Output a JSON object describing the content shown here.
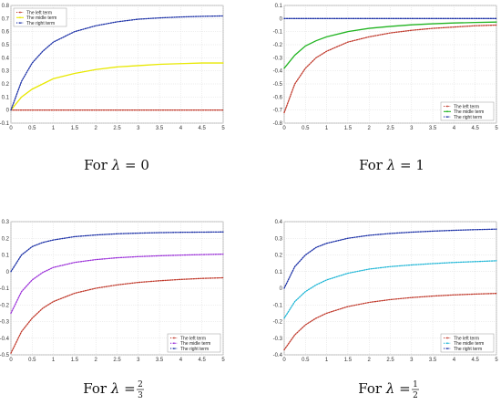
{
  "chart_data": [
    {
      "type": "line",
      "caption": {
        "prefix": "For",
        "lambda_sym": "λ",
        "eq": "=",
        "value": "0"
      },
      "xlim": [
        0,
        5
      ],
      "ylim": [
        -0.1,
        0.8
      ],
      "xticks": [
        "0",
        "0.5",
        "1",
        "1.5",
        "2",
        "2.5",
        "3",
        "3.5",
        "4",
        "4.5",
        "5"
      ],
      "yticks": [
        "-0.1",
        "0",
        "0.1",
        "0.2",
        "0.3",
        "0.4",
        "0.5",
        "0.6",
        "0.7",
        "0.8"
      ],
      "grid": true,
      "legend_position": "top-left",
      "series": [
        {
          "name": "The left term",
          "color": "#c0392b",
          "dash": "1.2,1.4",
          "points": [
            [
              0,
              0
            ],
            [
              0.5,
              0
            ],
            [
              1,
              0
            ],
            [
              1.5,
              0
            ],
            [
              2,
              0
            ],
            [
              2.5,
              0
            ],
            [
              3,
              0
            ],
            [
              3.5,
              0
            ],
            [
              4,
              0
            ],
            [
              4.5,
              0
            ],
            [
              5,
              0
            ]
          ]
        },
        {
          "name": "The midle term",
          "color": "#e8e800",
          "dash": "",
          "points": [
            [
              0,
              0
            ],
            [
              0.25,
              0.1
            ],
            [
              0.5,
              0.16
            ],
            [
              0.75,
              0.2
            ],
            [
              1,
              0.24
            ],
            [
              1.5,
              0.28
            ],
            [
              2,
              0.31
            ],
            [
              2.5,
              0.33
            ],
            [
              3,
              0.34
            ],
            [
              3.5,
              0.35
            ],
            [
              4,
              0.355
            ],
            [
              4.5,
              0.36
            ],
            [
              5,
              0.36
            ]
          ]
        },
        {
          "name": "The right term",
          "color": "#1a2fa6",
          "dash": "1.2,1.4",
          "points": [
            [
              0,
              0
            ],
            [
              0.25,
              0.22
            ],
            [
              0.5,
              0.36
            ],
            [
              0.75,
              0.45
            ],
            [
              1,
              0.52
            ],
            [
              1.5,
              0.6
            ],
            [
              2,
              0.645
            ],
            [
              2.5,
              0.675
            ],
            [
              3,
              0.695
            ],
            [
              3.5,
              0.705
            ],
            [
              4,
              0.712
            ],
            [
              4.5,
              0.717
            ],
            [
              5,
              0.72
            ]
          ]
        }
      ]
    },
    {
      "type": "line",
      "caption": {
        "prefix": "For",
        "lambda_sym": "λ",
        "eq": "=",
        "value": "1"
      },
      "xlim": [
        0,
        5
      ],
      "ylim": [
        -0.8,
        0.1
      ],
      "xticks": [
        "0",
        "0.5",
        "1",
        "1.5",
        "2",
        "2.5",
        "3",
        "3.5",
        "4",
        "4.5",
        "5"
      ],
      "yticks": [
        "-0.8",
        "-0.7",
        "-0.6",
        "-0.5",
        "-0.4",
        "-0.3",
        "-0.2",
        "-0.1",
        "0",
        "0.1"
      ],
      "grid": true,
      "legend_position": "bottom-right",
      "series": [
        {
          "name": "The left term",
          "color": "#c0392b",
          "dash": "1.2,1.4",
          "points": [
            [
              0,
              -0.72
            ],
            [
              0.25,
              -0.5
            ],
            [
              0.5,
              -0.38
            ],
            [
              0.75,
              -0.3
            ],
            [
              1,
              -0.25
            ],
            [
              1.5,
              -0.18
            ],
            [
              2,
              -0.14
            ],
            [
              2.5,
              -0.11
            ],
            [
              3,
              -0.09
            ],
            [
              3.5,
              -0.075
            ],
            [
              4,
              -0.065
            ],
            [
              4.5,
              -0.055
            ],
            [
              5,
              -0.05
            ]
          ]
        },
        {
          "name": "The midle term",
          "color": "#22b422",
          "dash": "",
          "points": [
            [
              0,
              -0.38
            ],
            [
              0.25,
              -0.28
            ],
            [
              0.5,
              -0.21
            ],
            [
              0.75,
              -0.17
            ],
            [
              1,
              -0.14
            ],
            [
              1.5,
              -0.1
            ],
            [
              2,
              -0.075
            ],
            [
              2.5,
              -0.06
            ],
            [
              3,
              -0.048
            ],
            [
              3.5,
              -0.04
            ],
            [
              4,
              -0.034
            ],
            [
              4.5,
              -0.03
            ],
            [
              5,
              -0.027
            ]
          ]
        },
        {
          "name": "The right term",
          "color": "#1a2fa6",
          "dash": "1.2,1.4",
          "points": [
            [
              0,
              0
            ],
            [
              0.5,
              0
            ],
            [
              1,
              0
            ],
            [
              1.5,
              0
            ],
            [
              2,
              0
            ],
            [
              2.5,
              0
            ],
            [
              3,
              0
            ],
            [
              3.5,
              0
            ],
            [
              4,
              0
            ],
            [
              4.5,
              0
            ],
            [
              5,
              0
            ]
          ]
        }
      ]
    },
    {
      "type": "line",
      "caption": {
        "prefix": "For",
        "lambda_sym": "λ",
        "eq": "=",
        "num": "2",
        "den": "3"
      },
      "xlim": [
        0,
        5
      ],
      "ylim": [
        -0.5,
        0.3
      ],
      "xticks": [
        "0",
        "0.5",
        "1",
        "1.5",
        "2",
        "2.5",
        "3",
        "3.5",
        "4",
        "4.5",
        "5"
      ],
      "yticks": [
        "-0.5",
        "-0.4",
        "-0.3",
        "-0.2",
        "-0.1",
        "0",
        "0.1",
        "0.2",
        "0.3"
      ],
      "grid": true,
      "legend_position": "bottom-right",
      "series": [
        {
          "name": "The left term",
          "color": "#c0392b",
          "dash": "1.2,1.4",
          "points": [
            [
              0,
              -0.49
            ],
            [
              0.25,
              -0.36
            ],
            [
              0.5,
              -0.28
            ],
            [
              0.75,
              -0.22
            ],
            [
              1,
              -0.18
            ],
            [
              1.5,
              -0.13
            ],
            [
              2,
              -0.1
            ],
            [
              2.5,
              -0.08
            ],
            [
              3,
              -0.065
            ],
            [
              3.5,
              -0.055
            ],
            [
              4,
              -0.047
            ],
            [
              4.5,
              -0.041
            ],
            [
              5,
              -0.037
            ]
          ]
        },
        {
          "name": "The midle term",
          "color": "#9b30d9",
          "dash": "1.2,1.4",
          "points": [
            [
              0,
              -0.25
            ],
            [
              0.25,
              -0.12
            ],
            [
              0.5,
              -0.05
            ],
            [
              0.75,
              -0.005
            ],
            [
              1,
              0.025
            ],
            [
              1.5,
              0.055
            ],
            [
              2,
              0.072
            ],
            [
              2.5,
              0.083
            ],
            [
              3,
              0.09
            ],
            [
              3.5,
              0.095
            ],
            [
              4,
              0.099
            ],
            [
              4.5,
              0.102
            ],
            [
              5,
              0.105
            ]
          ]
        },
        {
          "name": "The right term",
          "color": "#1a2fa6",
          "dash": "1.2,1.4",
          "points": [
            [
              0,
              0
            ],
            [
              0.25,
              0.1
            ],
            [
              0.5,
              0.15
            ],
            [
              0.75,
              0.175
            ],
            [
              1,
              0.19
            ],
            [
              1.5,
              0.21
            ],
            [
              2,
              0.22
            ],
            [
              2.5,
              0.227
            ],
            [
              3,
              0.231
            ],
            [
              3.5,
              0.234
            ],
            [
              4,
              0.236
            ],
            [
              4.5,
              0.237
            ],
            [
              5,
              0.238
            ]
          ]
        }
      ]
    },
    {
      "type": "line",
      "caption": {
        "prefix": "For",
        "lambda_sym": "λ",
        "eq": "=",
        "num": "1",
        "den": "2"
      },
      "xlim": [
        0,
        5
      ],
      "ylim": [
        -0.4,
        0.4
      ],
      "xticks": [
        "0",
        "0.5",
        "1",
        "1.5",
        "2",
        "2.5",
        "3",
        "3.5",
        "4",
        "4.5",
        "5"
      ],
      "yticks": [
        "-0.4",
        "-0.3",
        "-0.2",
        "-0.1",
        "0",
        "0.1",
        "0.2",
        "0.3",
        "0.4"
      ],
      "grid": true,
      "legend_position": "bottom-right",
      "series": [
        {
          "name": "The left term",
          "color": "#c0392b",
          "dash": "1.2,1.4",
          "points": [
            [
              0,
              -0.37
            ],
            [
              0.25,
              -0.28
            ],
            [
              0.5,
              -0.22
            ],
            [
              0.75,
              -0.18
            ],
            [
              1,
              -0.15
            ],
            [
              1.5,
              -0.11
            ],
            [
              2,
              -0.085
            ],
            [
              2.5,
              -0.068
            ],
            [
              3,
              -0.056
            ],
            [
              3.5,
              -0.047
            ],
            [
              4,
              -0.04
            ],
            [
              4.5,
              -0.035
            ],
            [
              5,
              -0.031
            ]
          ]
        },
        {
          "name": "The midle term",
          "color": "#1fb6d6",
          "dash": "1.2,1.4",
          "points": [
            [
              0,
              -0.18
            ],
            [
              0.25,
              -0.08
            ],
            [
              0.5,
              -0.02
            ],
            [
              0.75,
              0.02
            ],
            [
              1,
              0.05
            ],
            [
              1.5,
              0.09
            ],
            [
              2,
              0.115
            ],
            [
              2.5,
              0.13
            ],
            [
              3,
              0.14
            ],
            [
              3.5,
              0.148
            ],
            [
              4,
              0.155
            ],
            [
              4.5,
              0.16
            ],
            [
              5,
              0.165
            ]
          ]
        },
        {
          "name": "The right term",
          "color": "#1a2fa6",
          "dash": "1.2,1.4",
          "points": [
            [
              0,
              0
            ],
            [
              0.25,
              0.13
            ],
            [
              0.5,
              0.2
            ],
            [
              0.75,
              0.245
            ],
            [
              1,
              0.27
            ],
            [
              1.5,
              0.3
            ],
            [
              2,
              0.318
            ],
            [
              2.5,
              0.329
            ],
            [
              3,
              0.337
            ],
            [
              3.5,
              0.343
            ],
            [
              4,
              0.348
            ],
            [
              4.5,
              0.352
            ],
            [
              5,
              0.355
            ]
          ]
        }
      ]
    }
  ]
}
